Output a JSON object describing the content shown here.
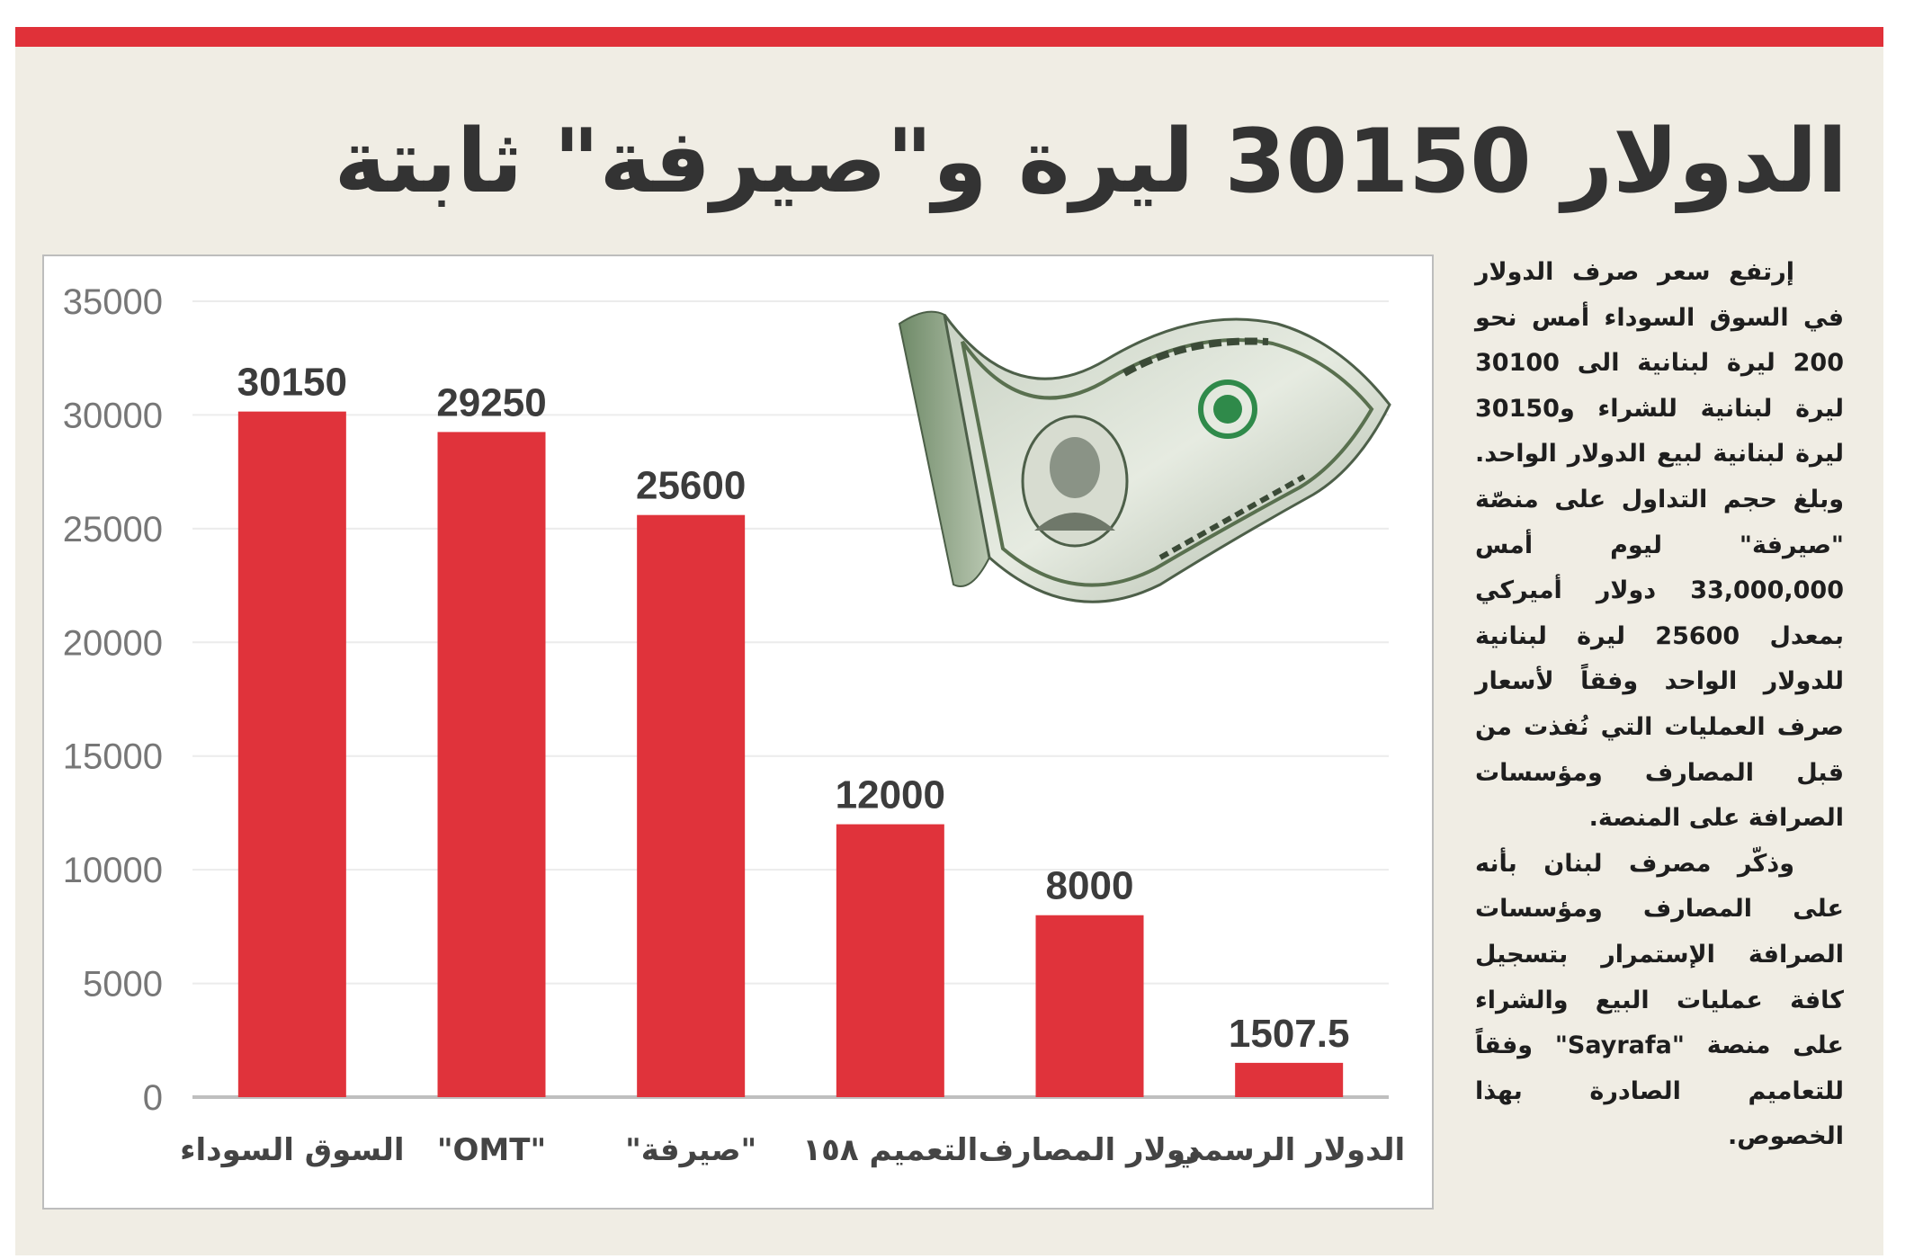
{
  "headline": "الدولار 30150 ليرة و\"صيرفة\" ثابتة",
  "article": {
    "paragraphs": [
      "إرتفع سعر صرف الدولار في السوق السوداء أمس نحو 200 ليرة لبنانية الى 30100 ليرة لبنانية للشراء و30150 ليرة لبنانية لبيع الدولار الواحد. وبلغ حجم التداول على منصّة \"صيرفة\" ليوم أمس 33,000,000 دولار أميركي بمعدل 25600 ليرة لبنانية للدولار الواحد وفقاً لأسعار صرف العمليات التي نُفذت من قبل المصارف ومؤسسات الصرافة على المنصة.",
      "وذكّر مصرف لبنان بأنه على المصارف ومؤسسات الصرافة الإستمرار بتسجيل كافة عمليات البيع والشراء على منصة \"Sayrafa\" وفقاً للتعاميم الصادرة بهذا الخصوص."
    ]
  },
  "image": {
    "icon": "dollar-bill-icon"
  },
  "colors": {
    "accent": "#e03139",
    "bar": "#e0333b",
    "background": "#f0ede4",
    "headline": "#333333"
  },
  "chart_data": {
    "type": "bar",
    "categories": [
      "السوق السوداء",
      "\"OMT\"",
      "\"صيرفة\"",
      "التعميم ١٥٨",
      "دولار المصارف",
      "الدولار الرسمي"
    ],
    "values": [
      30150,
      29250,
      25600,
      12000,
      8000,
      1507.5
    ],
    "value_labels": [
      "30150",
      "29250",
      "25600",
      "12000",
      "8000",
      "1507.5"
    ],
    "ylim": [
      0,
      35000
    ],
    "yticks": [
      "0",
      "5000",
      "10000",
      "15000",
      "20000",
      "25000",
      "30000",
      "35000"
    ],
    "grid": true,
    "legend": "none"
  }
}
